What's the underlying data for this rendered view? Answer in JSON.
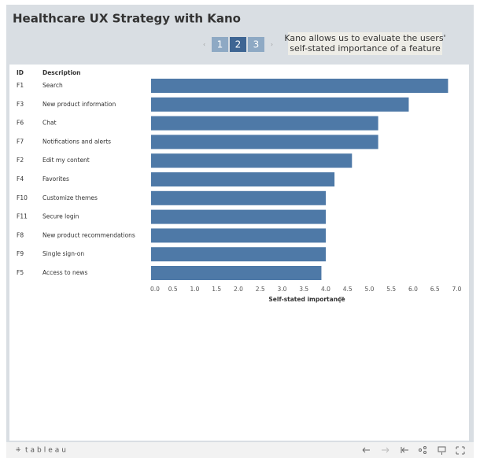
{
  "header": {
    "title": "Healthcare UX Strategy with Kano",
    "pages": [
      "1",
      "2",
      "3"
    ]
  },
  "annotation": [
    "Kano allows us to evaluate the users'",
    "self-stated importance of a feature"
  ],
  "chart_data": {
    "type": "bar",
    "orientation": "horizontal",
    "column_headers": [
      "ID",
      "Description"
    ],
    "ids": [
      "F1",
      "F3",
      "F6",
      "F7",
      "F2",
      "F4",
      "F10",
      "F11",
      "F8",
      "F9",
      "F5"
    ],
    "categories": [
      "Search",
      "New product information",
      "Chat",
      "Notifications and alerts",
      "Edit my content",
      "Favorites",
      "Customize themes",
      "Secure login",
      "New product recommendations",
      "Single sign-on",
      "Access to news"
    ],
    "values": [
      6.8,
      5.9,
      5.2,
      5.2,
      4.6,
      4.2,
      4.0,
      4.0,
      4.0,
      4.0,
      3.9
    ],
    "color": "#4e79a7",
    "xlim": [
      0,
      7
    ],
    "xticks": [
      {
        "value": 0,
        "label": "0.0"
      },
      0.5,
      {
        "value": 1,
        "label": "1.0"
      },
      1.5,
      {
        "value": 2,
        "label": "2.0"
      },
      2.5,
      {
        "value": 3,
        "label": "3.0"
      },
      3.5,
      {
        "value": 4,
        "label": "4.0"
      },
      4.5,
      {
        "value": 5,
        "label": "5.0"
      },
      5.5,
      {
        "value": 6,
        "label": "6.0"
      },
      6.5,
      {
        "value": 7,
        "label": "7.0"
      }
    ],
    "xlabel": "Self-stated importance"
  },
  "footer": {
    "brand": "tableau"
  }
}
